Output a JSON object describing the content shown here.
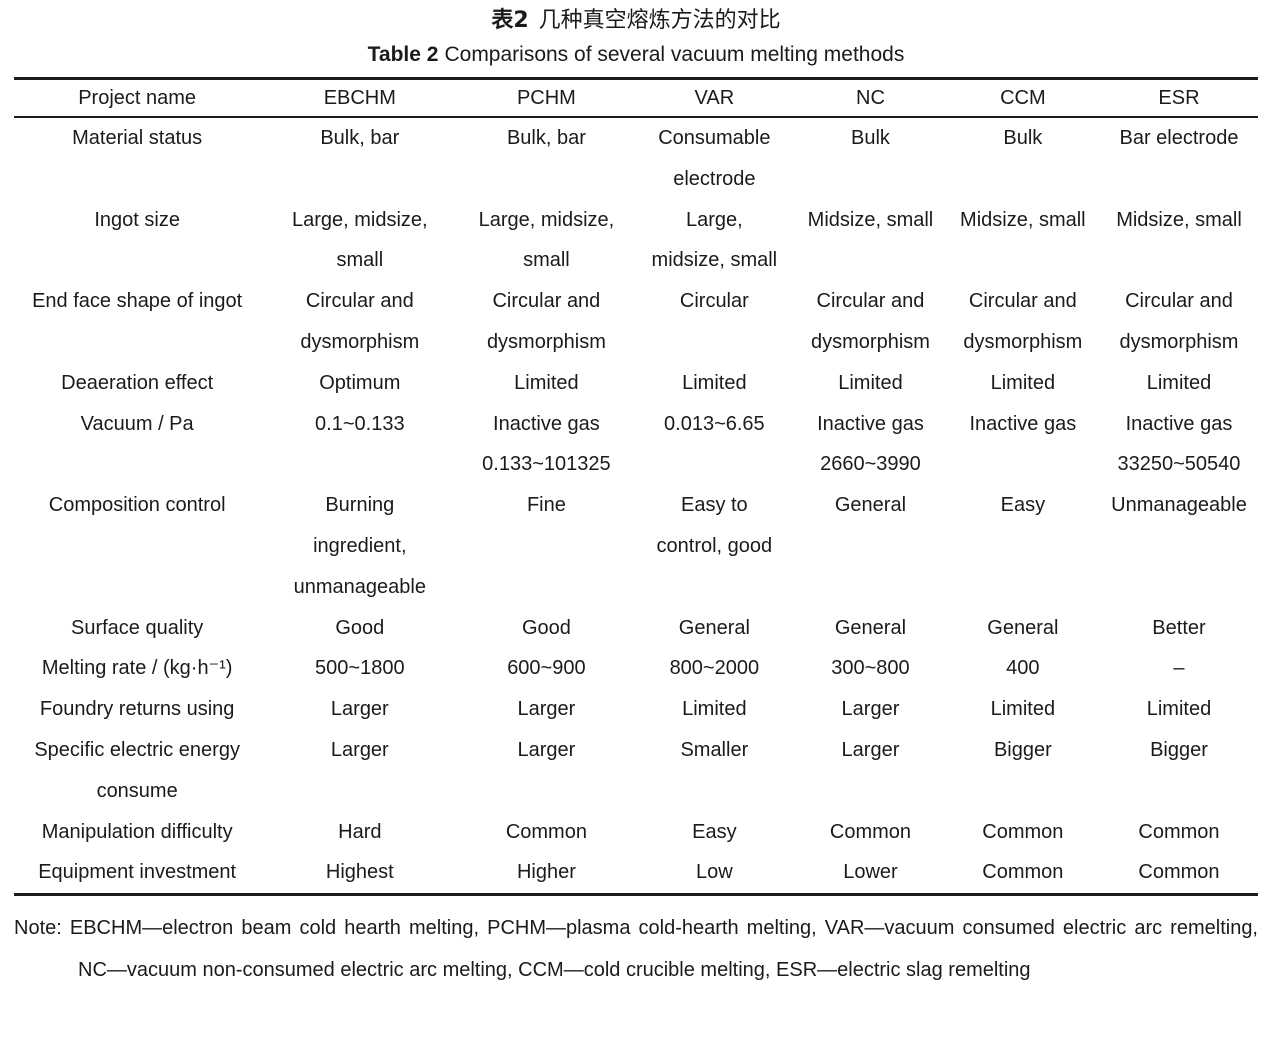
{
  "title": {
    "zh_label": "表2",
    "zh_text": "几种真空熔炼方法的对比",
    "en_label": "Table 2",
    "en_text": "Comparisons of several vacuum melting methods"
  },
  "chart_data": {
    "type": "table",
    "title": "Table 2 Comparisons of several vacuum melting methods",
    "columns": [
      "Project name",
      "EBCHM",
      "PCHM",
      "VAR",
      "NC",
      "CCM",
      "ESR"
    ],
    "rows": [
      {
        "label": "Material status",
        "cells": [
          "Bulk, bar",
          "Bulk, bar",
          "Consumable\nelectrode",
          "Bulk",
          "Bulk",
          "Bar electrode"
        ]
      },
      {
        "label": "Ingot size",
        "cells": [
          "Large, midsize,\nsmall",
          "Large, midsize,\nsmall",
          "Large,\nmidsize, small",
          "Midsize, small",
          "Midsize, small",
          "Midsize, small"
        ]
      },
      {
        "label": "End face shape of ingot",
        "cells": [
          "Circular and\ndysmorphism",
          "Circular and\ndysmorphism",
          "Circular",
          "Circular and\ndysmorphism",
          "Circular and\ndysmorphism",
          "Circular and\ndysmorphism"
        ]
      },
      {
        "label": "Deaeration effect",
        "cells": [
          "Optimum",
          "Limited",
          "Limited",
          "Limited",
          "Limited",
          "Limited"
        ]
      },
      {
        "label": "Vacuum / Pa",
        "cells": [
          "0.1~0.133",
          "Inactive gas\n0.133~101325",
          "0.013~6.65",
          "Inactive gas\n2660~3990",
          "Inactive gas",
          "Inactive gas\n33250~50540"
        ]
      },
      {
        "label": "Composition control",
        "cells": [
          "Burning\ningredient,\nunmanageable",
          "Fine",
          "Easy to\ncontrol, good",
          "General",
          "Easy",
          "Unmanageable"
        ]
      },
      {
        "label": "Surface quality",
        "cells": [
          "Good",
          "Good",
          "General",
          "General",
          "General",
          "Better"
        ]
      },
      {
        "label": "Melting rate / (kg·h⁻¹)",
        "cells": [
          "500~1800",
          "600~900",
          "800~2000",
          "300~800",
          "400",
          "–"
        ]
      },
      {
        "label": "Foundry returns using",
        "cells": [
          "Larger",
          "Larger",
          "Limited",
          "Larger",
          "Limited",
          "Limited"
        ]
      },
      {
        "label": "Specific electric energy\nconsume",
        "cells": [
          "Larger",
          "Larger",
          "Smaller",
          "Larger",
          "Bigger",
          "Bigger"
        ]
      },
      {
        "label": "Manipulation difficulty",
        "cells": [
          "Hard",
          "Common",
          "Easy",
          "Common",
          "Common",
          "Common"
        ]
      },
      {
        "label": "Equipment investment",
        "cells": [
          "Highest",
          "Higher",
          "Low",
          "Lower",
          "Common",
          "Common"
        ]
      }
    ]
  },
  "note": "Note: EBCHM—electron beam cold hearth melting, PCHM—plasma cold-hearth melting, VAR—vacuum consumed electric arc remelting, NC—vacuum non-consumed electric arc melting, CCM—cold crucible melting, ESR—electric slag remelting",
  "colors": {
    "text": "#1b1b1b",
    "rule": "#1b1b1b",
    "background": "#ffffff"
  }
}
